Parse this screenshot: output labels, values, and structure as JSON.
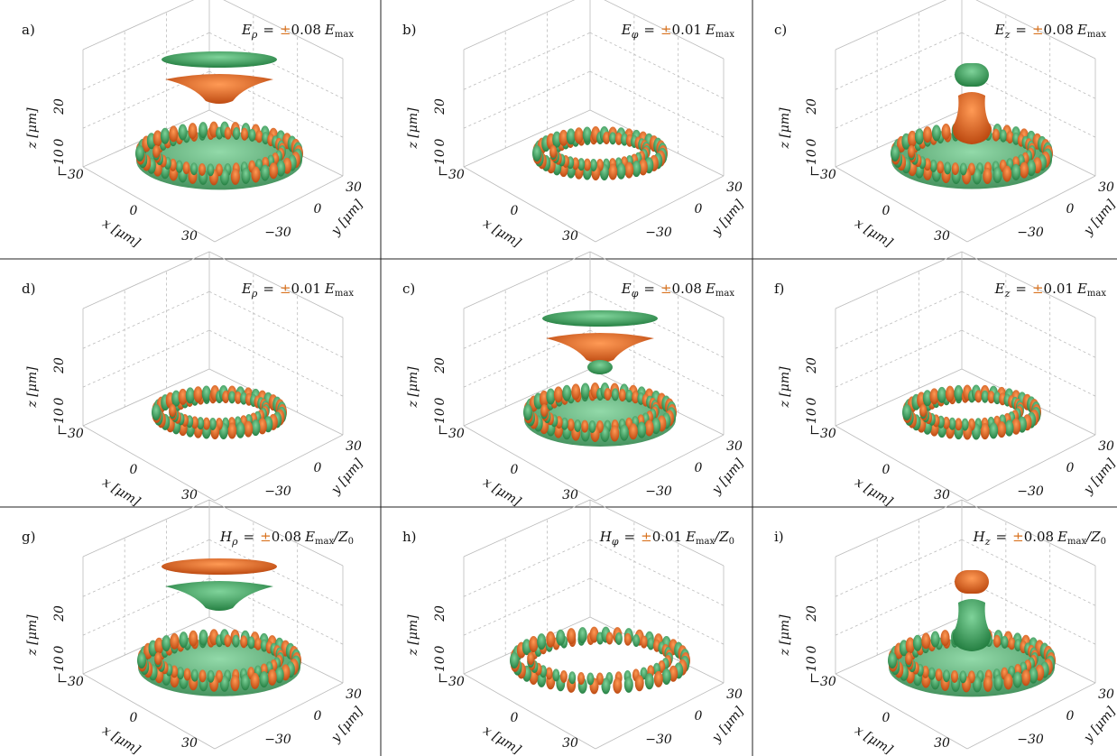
{
  "figure": {
    "axes": {
      "z_label": "z [μm]",
      "x_label": "x [μm]",
      "y_label": "y [μm]",
      "z_ticks": [
        "20",
        "0",
        "−10"
      ],
      "x_ticks": [
        "−30",
        "0",
        "30"
      ],
      "y_ticks": [
        "30",
        "0",
        "−30"
      ]
    },
    "title_relation": "=",
    "title_sign": "±",
    "panels": [
      {
        "label": "a)",
        "symbol": "E",
        "component": "ρ",
        "amplitude": "0.08",
        "reference": "E",
        "reference_sub": "max"
      },
      {
        "label": "b)",
        "symbol": "E",
        "component": "φ",
        "amplitude": "0.01",
        "reference": "E",
        "reference_sub": "max"
      },
      {
        "label": "c)",
        "symbol": "E",
        "component": "z",
        "amplitude": "0.08",
        "reference": "E",
        "reference_sub": "max"
      },
      {
        "label": "d)",
        "symbol": "E",
        "component": "ρ",
        "amplitude": "0.01",
        "reference": "E",
        "reference_sub": "max"
      },
      {
        "label": "c)",
        "symbol": "E",
        "component": "φ",
        "amplitude": "0.08",
        "reference": "E",
        "reference_sub": "max"
      },
      {
        "label": "f)",
        "symbol": "E",
        "component": "z",
        "amplitude": "0.01",
        "reference": "E",
        "reference_sub": "max"
      },
      {
        "label": "g)",
        "symbol": "H",
        "component": "ρ",
        "amplitude": "0.08",
        "reference": "E",
        "reference_sub": "max",
        "divisor": "/Z",
        "divisor_sub": "0"
      },
      {
        "label": "h)",
        "symbol": "H",
        "component": "φ",
        "amplitude": "0.01",
        "reference": "E",
        "reference_sub": "max",
        "divisor": "/Z",
        "divisor_sub": "0"
      },
      {
        "label": "i)",
        "symbol": "H",
        "component": "z",
        "amplitude": "0.08",
        "reference": "E",
        "reference_sub": "max",
        "divisor": "/Z",
        "divisor_sub": "0"
      }
    ]
  }
}
